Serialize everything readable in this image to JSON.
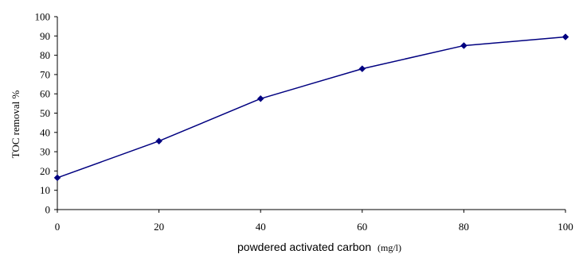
{
  "chart_data": {
    "type": "line",
    "title": "",
    "xlabel_main": "powdered activated carbon",
    "xlabel_unit": "(mg/l)",
    "ylabel": "TOC removal %",
    "xlim": [
      0,
      100
    ],
    "ylim": [
      0,
      100
    ],
    "x_ticks": [
      "0",
      "20",
      "40",
      "60",
      "80",
      "100"
    ],
    "y_ticks": [
      "0",
      "10",
      "20",
      "30",
      "40",
      "50",
      "60",
      "70",
      "80",
      "90",
      "100"
    ],
    "grid": false,
    "legend": "none",
    "series": [
      {
        "color": "#000080",
        "marker": "diamond",
        "x": [
          0,
          20,
          40,
          60,
          80,
          100
        ],
        "y": [
          16.5,
          35.5,
          57.5,
          73,
          85,
          89.5
        ]
      }
    ]
  }
}
